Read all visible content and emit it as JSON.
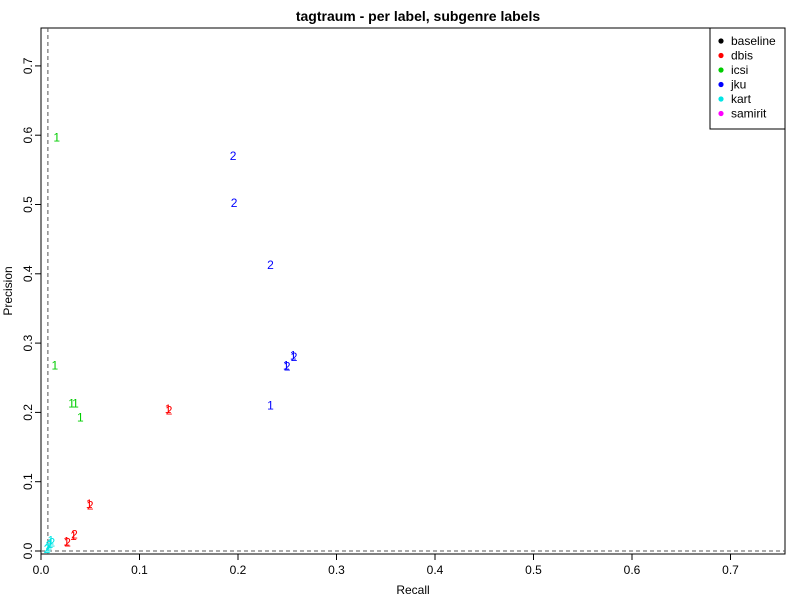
{
  "chart_data": {
    "type": "scatter",
    "title": "tagtraum - per label, subgenre labels",
    "xlabel": "Recall",
    "ylabel": "Precision",
    "xlim": [
      0,
      0.75
    ],
    "ylim": [
      0,
      0.75
    ],
    "xticks": [
      0.0,
      0.1,
      0.2,
      0.3,
      0.4,
      0.5,
      0.6,
      0.7
    ],
    "yticks": [
      0.0,
      0.1,
      0.2,
      0.3,
      0.4,
      0.5,
      0.6,
      0.7
    ],
    "grid": false,
    "reference_lines": {
      "x": 0.007,
      "y": 0.0
    },
    "legend": {
      "placement": "top-right",
      "entries": [
        {
          "label": "baseline",
          "color": "#000000"
        },
        {
          "label": "dbis",
          "color": "#ff0000"
        },
        {
          "label": "icsi",
          "color": "#00cd00"
        },
        {
          "label": "jku",
          "color": "#0000ff"
        },
        {
          "label": "kart",
          "color": "#00e5e5"
        },
        {
          "label": "samirit",
          "color": "#ff00ff"
        }
      ]
    },
    "series": [
      {
        "name": "dbis",
        "color": "#ff0000",
        "points": [
          {
            "x": 0.129,
            "y": 0.205,
            "label": "1"
          },
          {
            "x": 0.13,
            "y": 0.203,
            "label": "2"
          },
          {
            "x": 0.049,
            "y": 0.068,
            "label": "1"
          },
          {
            "x": 0.05,
            "y": 0.066,
            "label": "2"
          },
          {
            "x": 0.033,
            "y": 0.022,
            "label": "1"
          },
          {
            "x": 0.034,
            "y": 0.024,
            "label": "2"
          },
          {
            "x": 0.026,
            "y": 0.014,
            "label": "1"
          },
          {
            "x": 0.027,
            "y": 0.012,
            "label": "2"
          }
        ]
      },
      {
        "name": "icsi",
        "color": "#00cd00",
        "points": [
          {
            "x": 0.016,
            "y": 0.597,
            "label": "1"
          },
          {
            "x": 0.014,
            "y": 0.268,
            "label": "1"
          },
          {
            "x": 0.031,
            "y": 0.213,
            "label": "1"
          },
          {
            "x": 0.035,
            "y": 0.213,
            "label": "1"
          },
          {
            "x": 0.04,
            "y": 0.193,
            "label": "1"
          }
        ]
      },
      {
        "name": "jku",
        "color": "#0000ff",
        "points": [
          {
            "x": 0.195,
            "y": 0.57,
            "label": "2"
          },
          {
            "x": 0.196,
            "y": 0.502,
            "label": "2"
          },
          {
            "x": 0.233,
            "y": 0.413,
            "label": "2"
          },
          {
            "x": 0.256,
            "y": 0.282,
            "label": "1"
          },
          {
            "x": 0.257,
            "y": 0.28,
            "label": "2"
          },
          {
            "x": 0.249,
            "y": 0.268,
            "label": "1"
          },
          {
            "x": 0.25,
            "y": 0.266,
            "label": "2"
          },
          {
            "x": 0.233,
            "y": 0.21,
            "label": "1"
          }
        ]
      },
      {
        "name": "kart",
        "color": "#00e5e5",
        "points": [
          {
            "x": 0.01,
            "y": 0.015,
            "label": "1"
          },
          {
            "x": 0.009,
            "y": 0.01,
            "label": "1"
          },
          {
            "x": 0.007,
            "y": 0.005,
            "label": "1"
          },
          {
            "x": 0.008,
            "y": 0.008,
            "label": "2"
          },
          {
            "x": 0.006,
            "y": 0.003,
            "label": "2"
          },
          {
            "x": 0.011,
            "y": 0.012,
            "label": "2"
          }
        ]
      }
    ]
  }
}
